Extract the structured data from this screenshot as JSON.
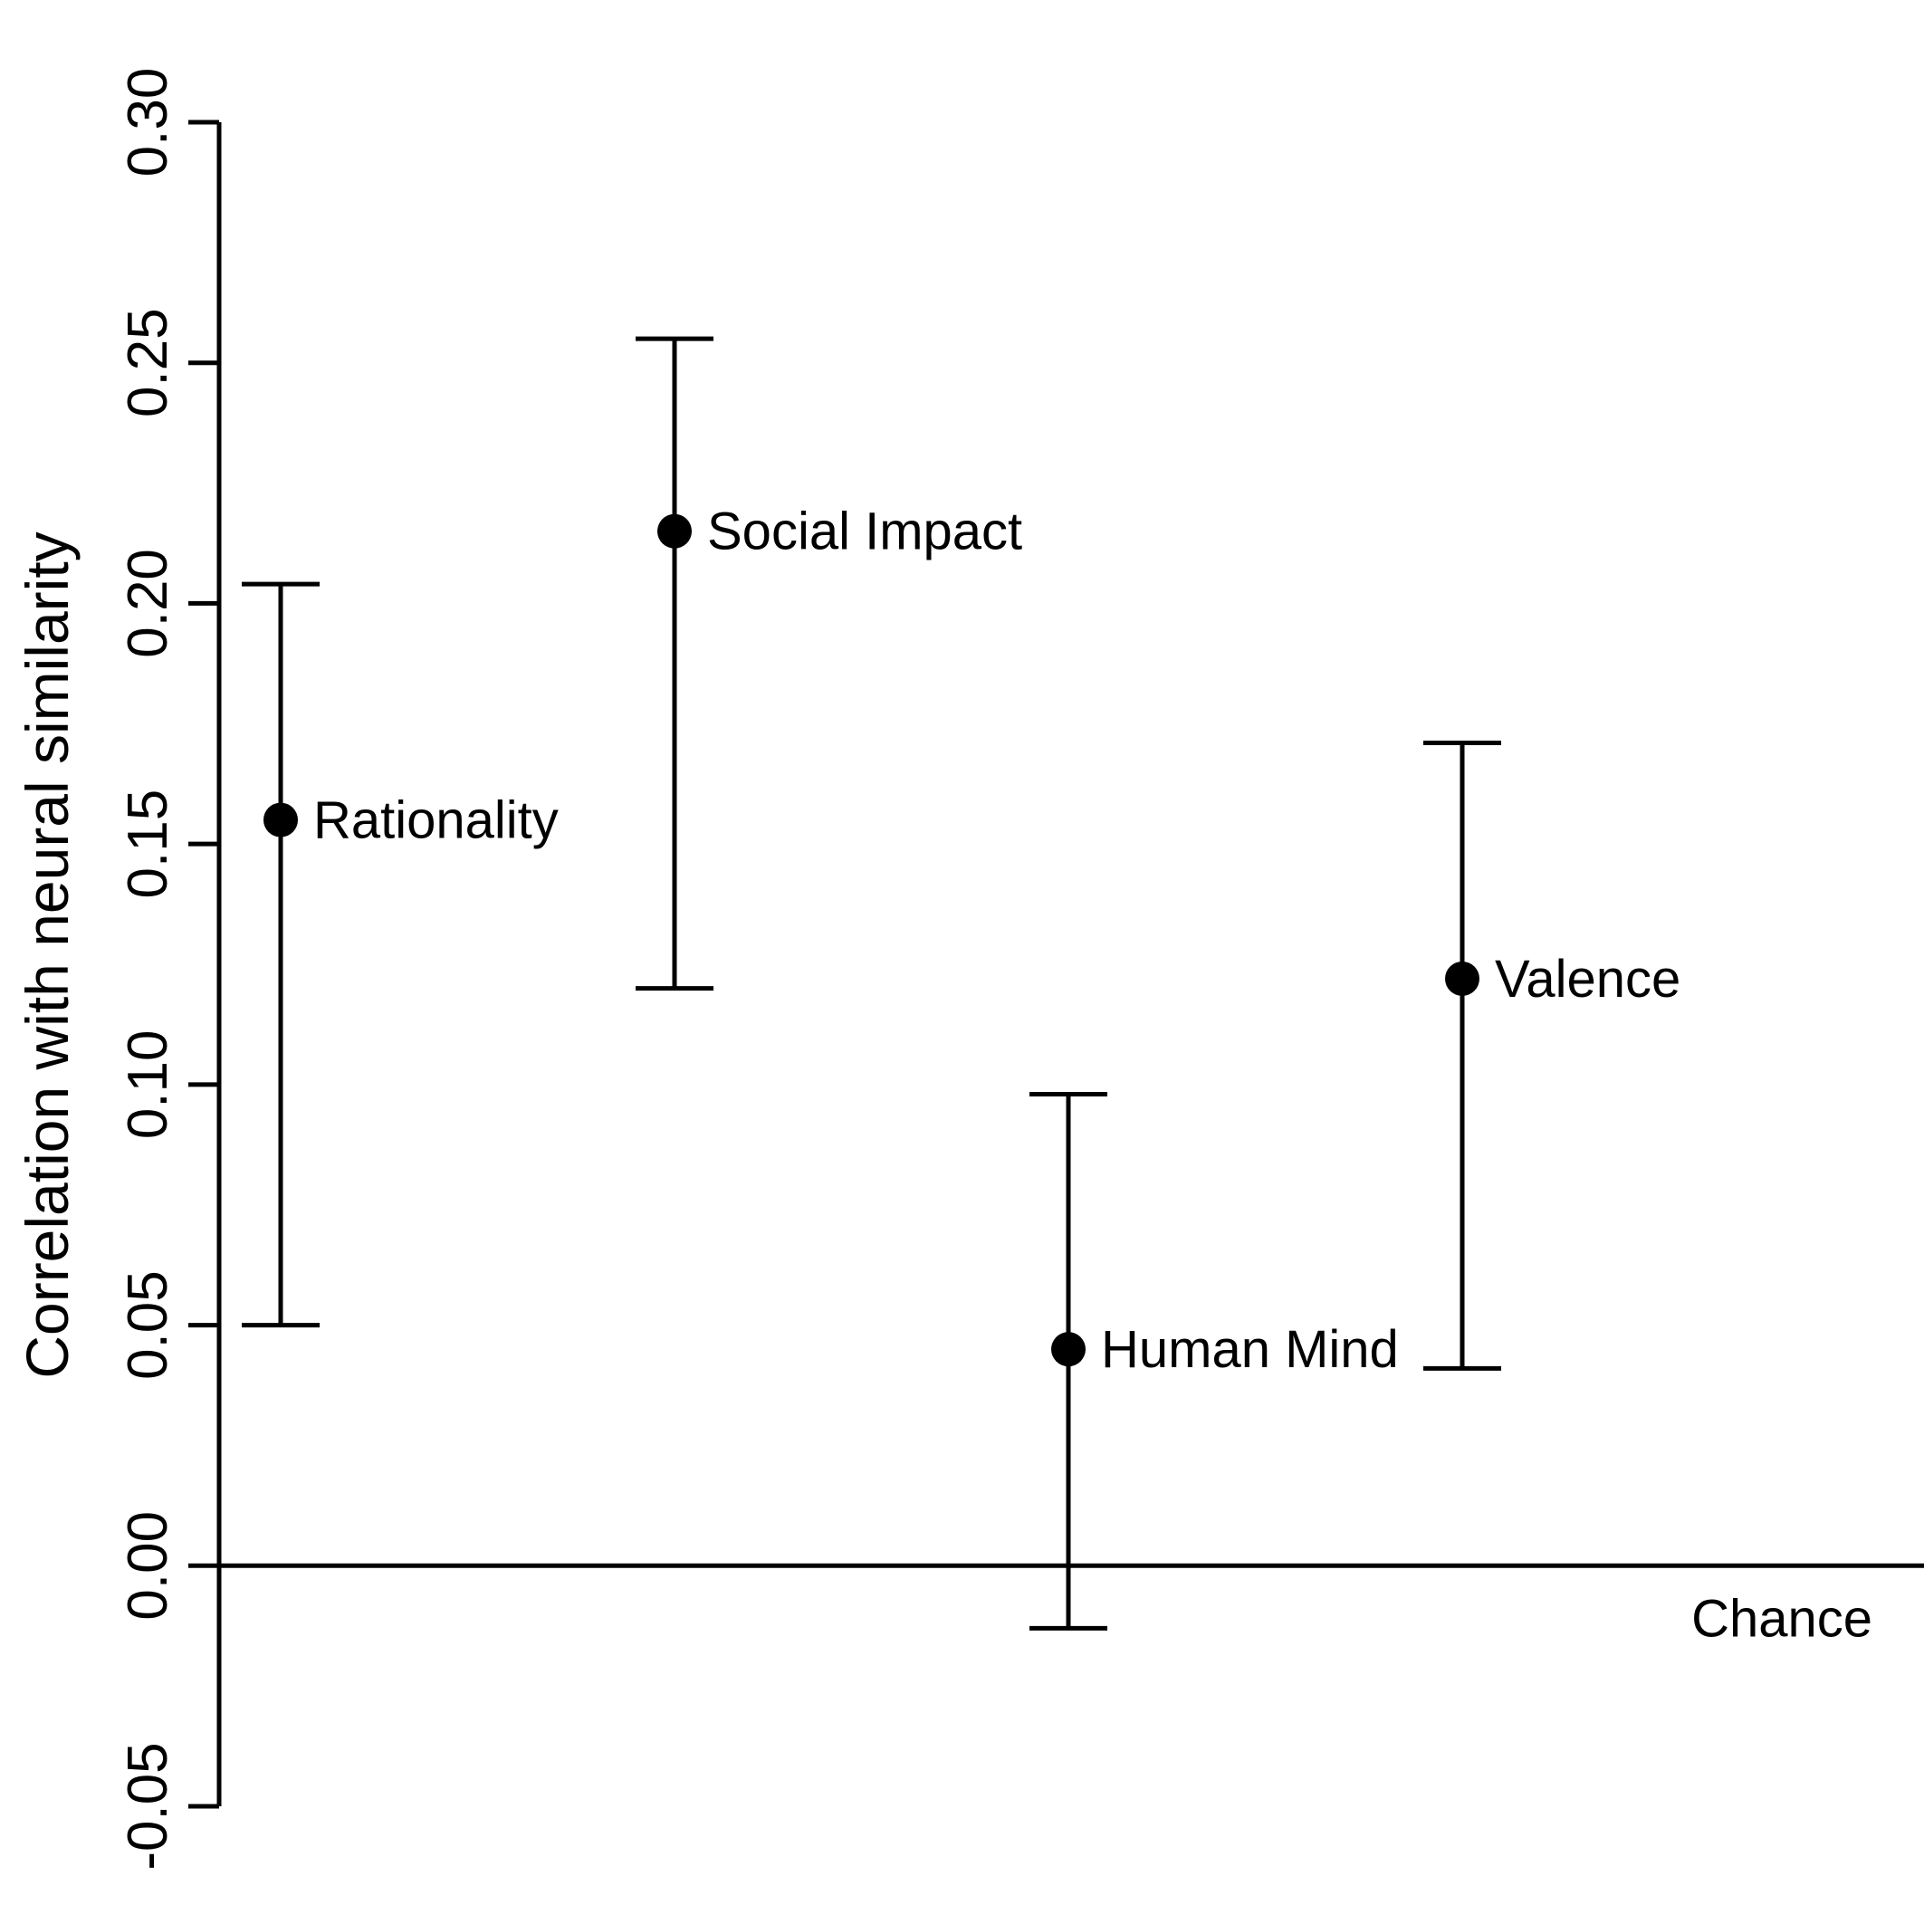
{
  "chart_data": {
    "type": "scatter",
    "title": "",
    "xlabel": "",
    "ylabel": "Correlation with neural similarity",
    "ylim": [
      -0.05,
      0.3
    ],
    "yticks": [
      "-0.05",
      "0.00",
      "0.05",
      "0.10",
      "0.15",
      "0.20",
      "0.25",
      "0.30"
    ],
    "ytick_values": [
      -0.05,
      0.0,
      0.05,
      0.1,
      0.15,
      0.2,
      0.25,
      0.3
    ],
    "grid": false,
    "reference_line": {
      "y": 0.0,
      "label": "Chance"
    },
    "points": [
      {
        "label": "Rationality",
        "x": 1,
        "y": 0.155,
        "ci_low": 0.05,
        "ci_high": 0.204
      },
      {
        "label": "Social Impact",
        "x": 2,
        "y": 0.215,
        "ci_low": 0.12,
        "ci_high": 0.255
      },
      {
        "label": "Human Mind",
        "x": 3,
        "y": 0.045,
        "ci_low": -0.013,
        "ci_high": 0.098
      },
      {
        "label": "Valence",
        "x": 4,
        "y": 0.122,
        "ci_low": 0.041,
        "ci_high": 0.171
      }
    ],
    "colors": {
      "ink": "#000000",
      "background": "#ffffff"
    }
  }
}
